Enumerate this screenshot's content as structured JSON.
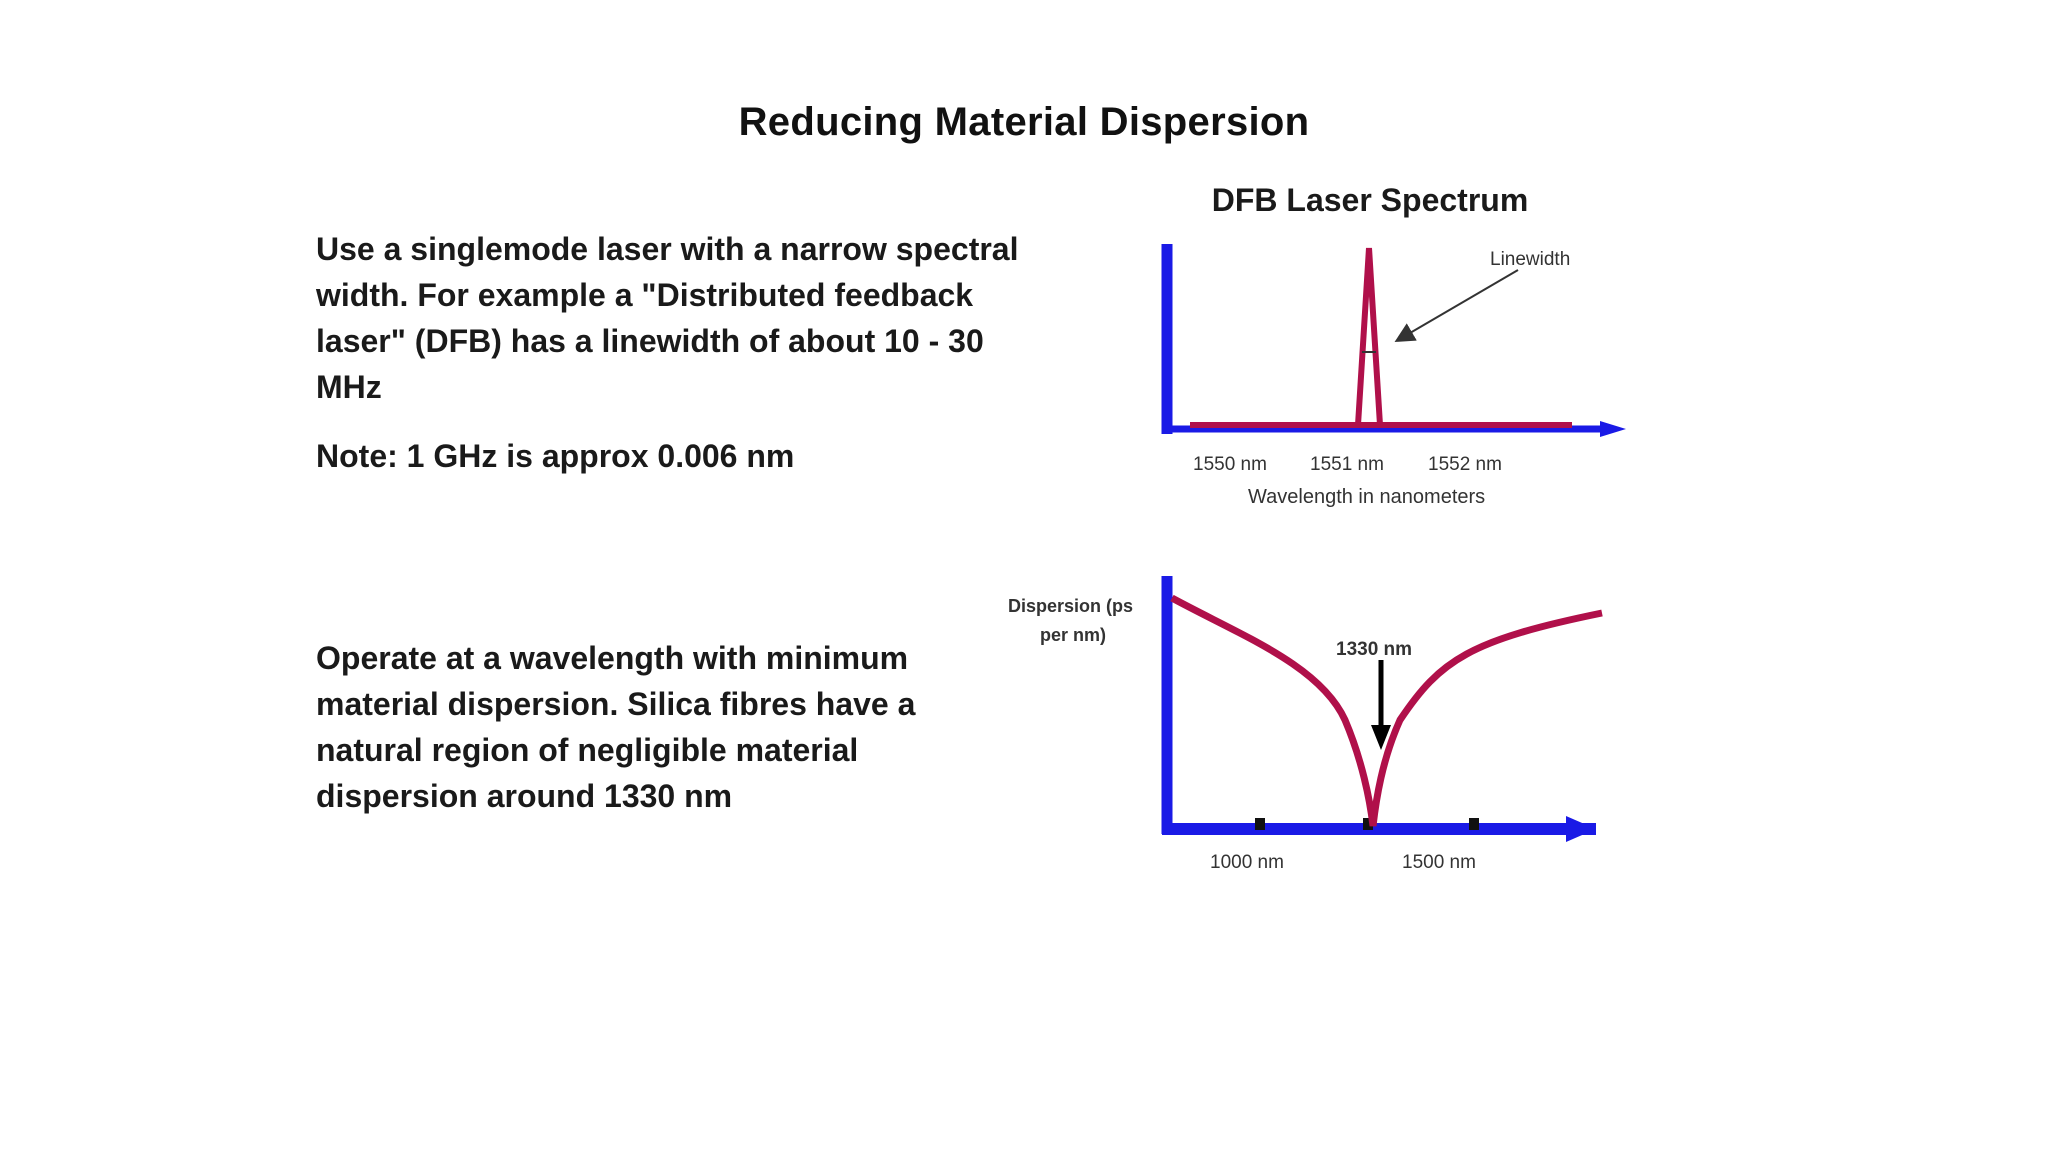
{
  "slide": {
    "title": "Reducing Material Dispersion",
    "bullets": [
      "Use a singlemode laser with a narrow spectral width. For example a \"Distributed feedback laser\" (DFB) has a linewidth of about 10 - 30 MHz",
      "Note:  1 GHz is approx 0.006 nm",
      "Operate at a wavelength with minimum material dispersion. Silica fibres have a natural region of negligible material dispersion around 1330 nm"
    ]
  },
  "chart_data": [
    {
      "type": "line",
      "title": "DFB Laser Spectrum",
      "xlabel": "Wavelength in nanometers",
      "ylabel": "",
      "x_ticks": [
        "1550 nm",
        "1551 nm",
        "1552 nm"
      ],
      "annotation": "Linewidth",
      "peak_x": 1551.0,
      "xlim": [
        1549.7,
        1553.4
      ],
      "colors": {
        "axis": "#1a1ae6",
        "curve": "#b0104a"
      }
    },
    {
      "type": "line",
      "title": "",
      "xlabel": "",
      "ylabel": "Dispersion (ps per nm)",
      "x_ticks": [
        "1000 nm",
        "1500 nm"
      ],
      "annotation": "1330 nm",
      "minimum_x": 1330,
      "xlim": [
        760,
        1880
      ],
      "colors": {
        "axis": "#1a1ae6",
        "curve": "#b0104a",
        "arrow": "#000000"
      }
    }
  ]
}
